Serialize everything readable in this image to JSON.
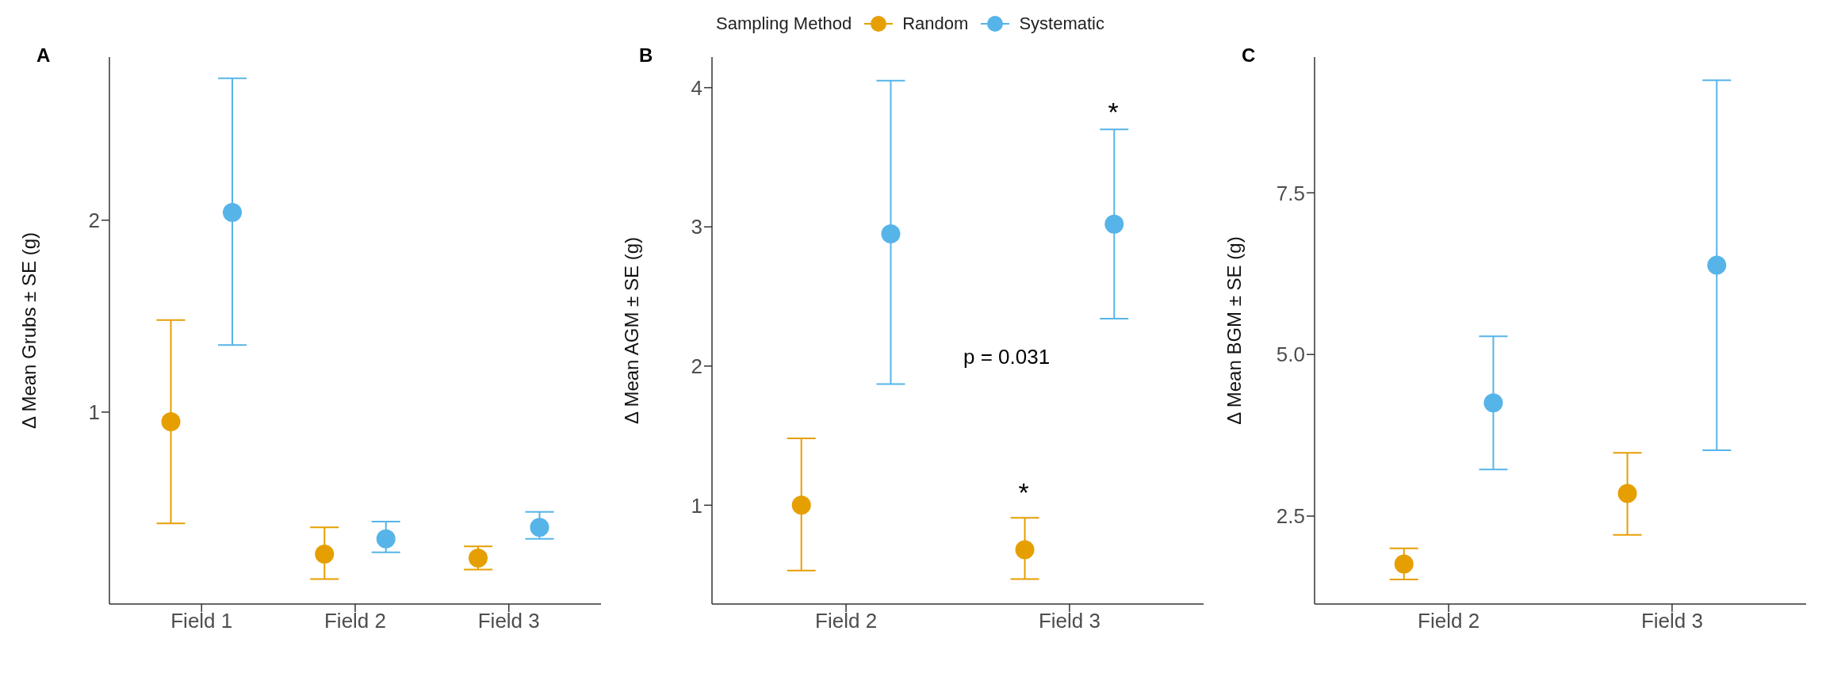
{
  "chart_data": [
    {
      "type": "scatter",
      "title": "A",
      "ylabel": "Δ Mean Grubs ± SE (g)",
      "legend_title": "Sampling Method",
      "legend": "top",
      "marker": "circle",
      "grid": false,
      "categories": [
        "Field 1",
        "Field 2",
        "Field 3"
      ],
      "ylim": [
        0,
        2.85
      ],
      "yticks": [
        1,
        2
      ],
      "series": [
        {
          "name": "Random",
          "color": "#e69f00",
          "values": [
            0.95,
            0.26,
            0.24
          ],
          "errors": [
            [
              0.42,
              1.48
            ],
            [
              0.13,
              0.4
            ],
            [
              0.18,
              0.3
            ]
          ]
        },
        {
          "name": "Systematic",
          "color": "#56b4e9",
          "values": [
            2.04,
            0.34,
            0.4
          ],
          "errors": [
            [
              1.35,
              2.74
            ],
            [
              0.27,
              0.43
            ],
            [
              0.34,
              0.48
            ]
          ]
        }
      ]
    },
    {
      "type": "scatter",
      "title": "B",
      "ylabel": "Δ Mean AGM ± SE (g)",
      "marker": "circle",
      "grid": false,
      "categories": [
        "Field 2",
        "Field 3"
      ],
      "ylim": [
        0.29,
        4.22
      ],
      "yticks": [
        1,
        2,
        3,
        4
      ],
      "annotations": [
        "p = 0.031",
        "*",
        "*"
      ],
      "series": [
        {
          "color": "#e69f00",
          "values": [
            1.0,
            0.68
          ],
          "errors": [
            [
              0.53,
              1.48
            ],
            [
              0.47,
              0.91
            ]
          ]
        },
        {
          "color": "#56b4e9",
          "values": [
            2.95,
            3.02
          ],
          "errors": [
            [
              1.87,
              4.05
            ],
            [
              2.34,
              3.7
            ]
          ]
        }
      ]
    },
    {
      "type": "scatter",
      "title": "C",
      "ylabel": "Δ Mean BGM ± SE (g)",
      "marker": "circle",
      "grid": false,
      "categories": [
        "Field 2",
        "Field 3"
      ],
      "ylim": [
        1.14,
        9.6
      ],
      "yticks": [
        {
          "value": 2.5,
          "label": "2.5"
        },
        {
          "value": 5,
          "label": "5.0"
        },
        {
          "value": 7.5,
          "label": "7.5"
        }
      ],
      "series": [
        {
          "color": "#e69f00",
          "values": [
            1.76,
            2.85
          ],
          "errors": [
            [
              1.52,
              2.0
            ],
            [
              2.21,
              3.48
            ]
          ]
        },
        {
          "color": "#56b4e9",
          "values": [
            4.25,
            6.38
          ],
          "errors": [
            [
              3.22,
              5.28
            ],
            [
              3.52,
              9.24
            ]
          ]
        }
      ]
    }
  ]
}
